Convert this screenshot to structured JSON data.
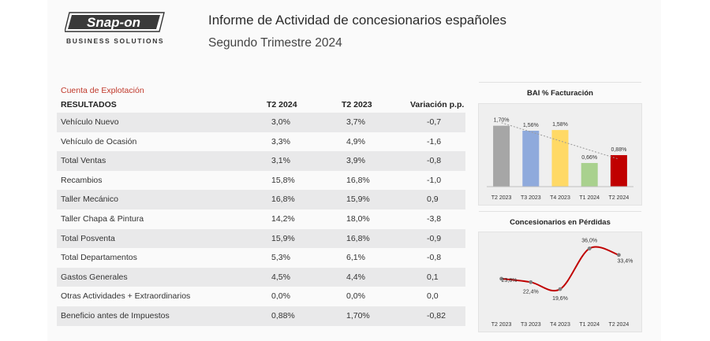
{
  "brand": {
    "logo_text": "Snap-on",
    "tagline": "BUSINESS SOLUTIONS"
  },
  "header": {
    "title": "Informe de Actividad de concesionarios españoles",
    "subtitle": "Segundo Trimestre 2024"
  },
  "table": {
    "section_label": "Cuenta de Explotación",
    "headers": {
      "label": "RESULTADOS",
      "t2024": "T2 2024",
      "t2023": "T2 2023",
      "var": "Variación p.p."
    },
    "rows": [
      {
        "label": "Vehículo Nuevo",
        "t2024": "3,0%",
        "t2023": "3,7%",
        "var": "-0,7"
      },
      {
        "label": "Vehículo de Ocasión",
        "t2024": "3,3%",
        "t2023": "4,9%",
        "var": "-1,6"
      },
      {
        "label": "Total Ventas",
        "t2024": "3,1%",
        "t2023": "3,9%",
        "var": "-0,8"
      },
      {
        "label": "Recambios",
        "t2024": "15,8%",
        "t2023": "16,8%",
        "var": "-1,0"
      },
      {
        "label": "Taller Mecánico",
        "t2024": "16,8%",
        "t2023": "15,9%",
        "var": "0,9"
      },
      {
        "label": "Taller Chapa & Pintura",
        "t2024": "14,2%",
        "t2023": "18,0%",
        "var": "-3,8"
      },
      {
        "label": "Total Posventa",
        "t2024": "15,9%",
        "t2023": "16,8%",
        "var": "-0,9"
      },
      {
        "label": "Total Departamentos",
        "t2024": "5,3%",
        "t2023": "6,1%",
        "var": "-0,8"
      },
      {
        "label": "Gastos Generales",
        "t2024": "4,5%",
        "t2023": "4,4%",
        "var": "0,1"
      },
      {
        "label": "Otras Actividades + Extraordinarios",
        "t2024": "0,0%",
        "t2023": "0,0%",
        "var": "0,0"
      },
      {
        "label": "Beneficio antes de Impuestos",
        "t2024": "0,88%",
        "t2023": "1,70%",
        "var": "-0,82"
      }
    ]
  },
  "chart_data": [
    {
      "type": "bar",
      "title": "BAI % Facturación",
      "categories": [
        "T2 2023",
        "T3 2023",
        "T4 2023",
        "T1 2024",
        "T2 2024"
      ],
      "values": [
        1.7,
        1.56,
        1.58,
        0.66,
        0.88
      ],
      "value_labels": [
        "1,70%",
        "1,56%",
        "1,58%",
        "0,66%",
        "0,88%"
      ],
      "colors": [
        "#a6a6a6",
        "#8faadc",
        "#ffd966",
        "#a9d18e",
        "#c00000"
      ],
      "trendline": true,
      "xlabel": "",
      "ylabel": "",
      "ylim": [
        0,
        2.0
      ],
      "grid": false
    },
    {
      "type": "line",
      "title": "Concesionarios en Pérdidas",
      "categories": [
        "T2 2023",
        "T3 2023",
        "T4 2023",
        "T1 2024",
        "T2 2024"
      ],
      "values": [
        23.8,
        22.4,
        19.6,
        36.0,
        33.4
      ],
      "value_labels": [
        "23,8%",
        "22,4%",
        "19,6%",
        "36,0%",
        "33,4%"
      ],
      "line_color": "#c00000",
      "marker_color": "#7f7f7f",
      "xlabel": "",
      "ylabel": "",
      "ylim": [
        12,
        40
      ],
      "grid": false
    }
  ]
}
